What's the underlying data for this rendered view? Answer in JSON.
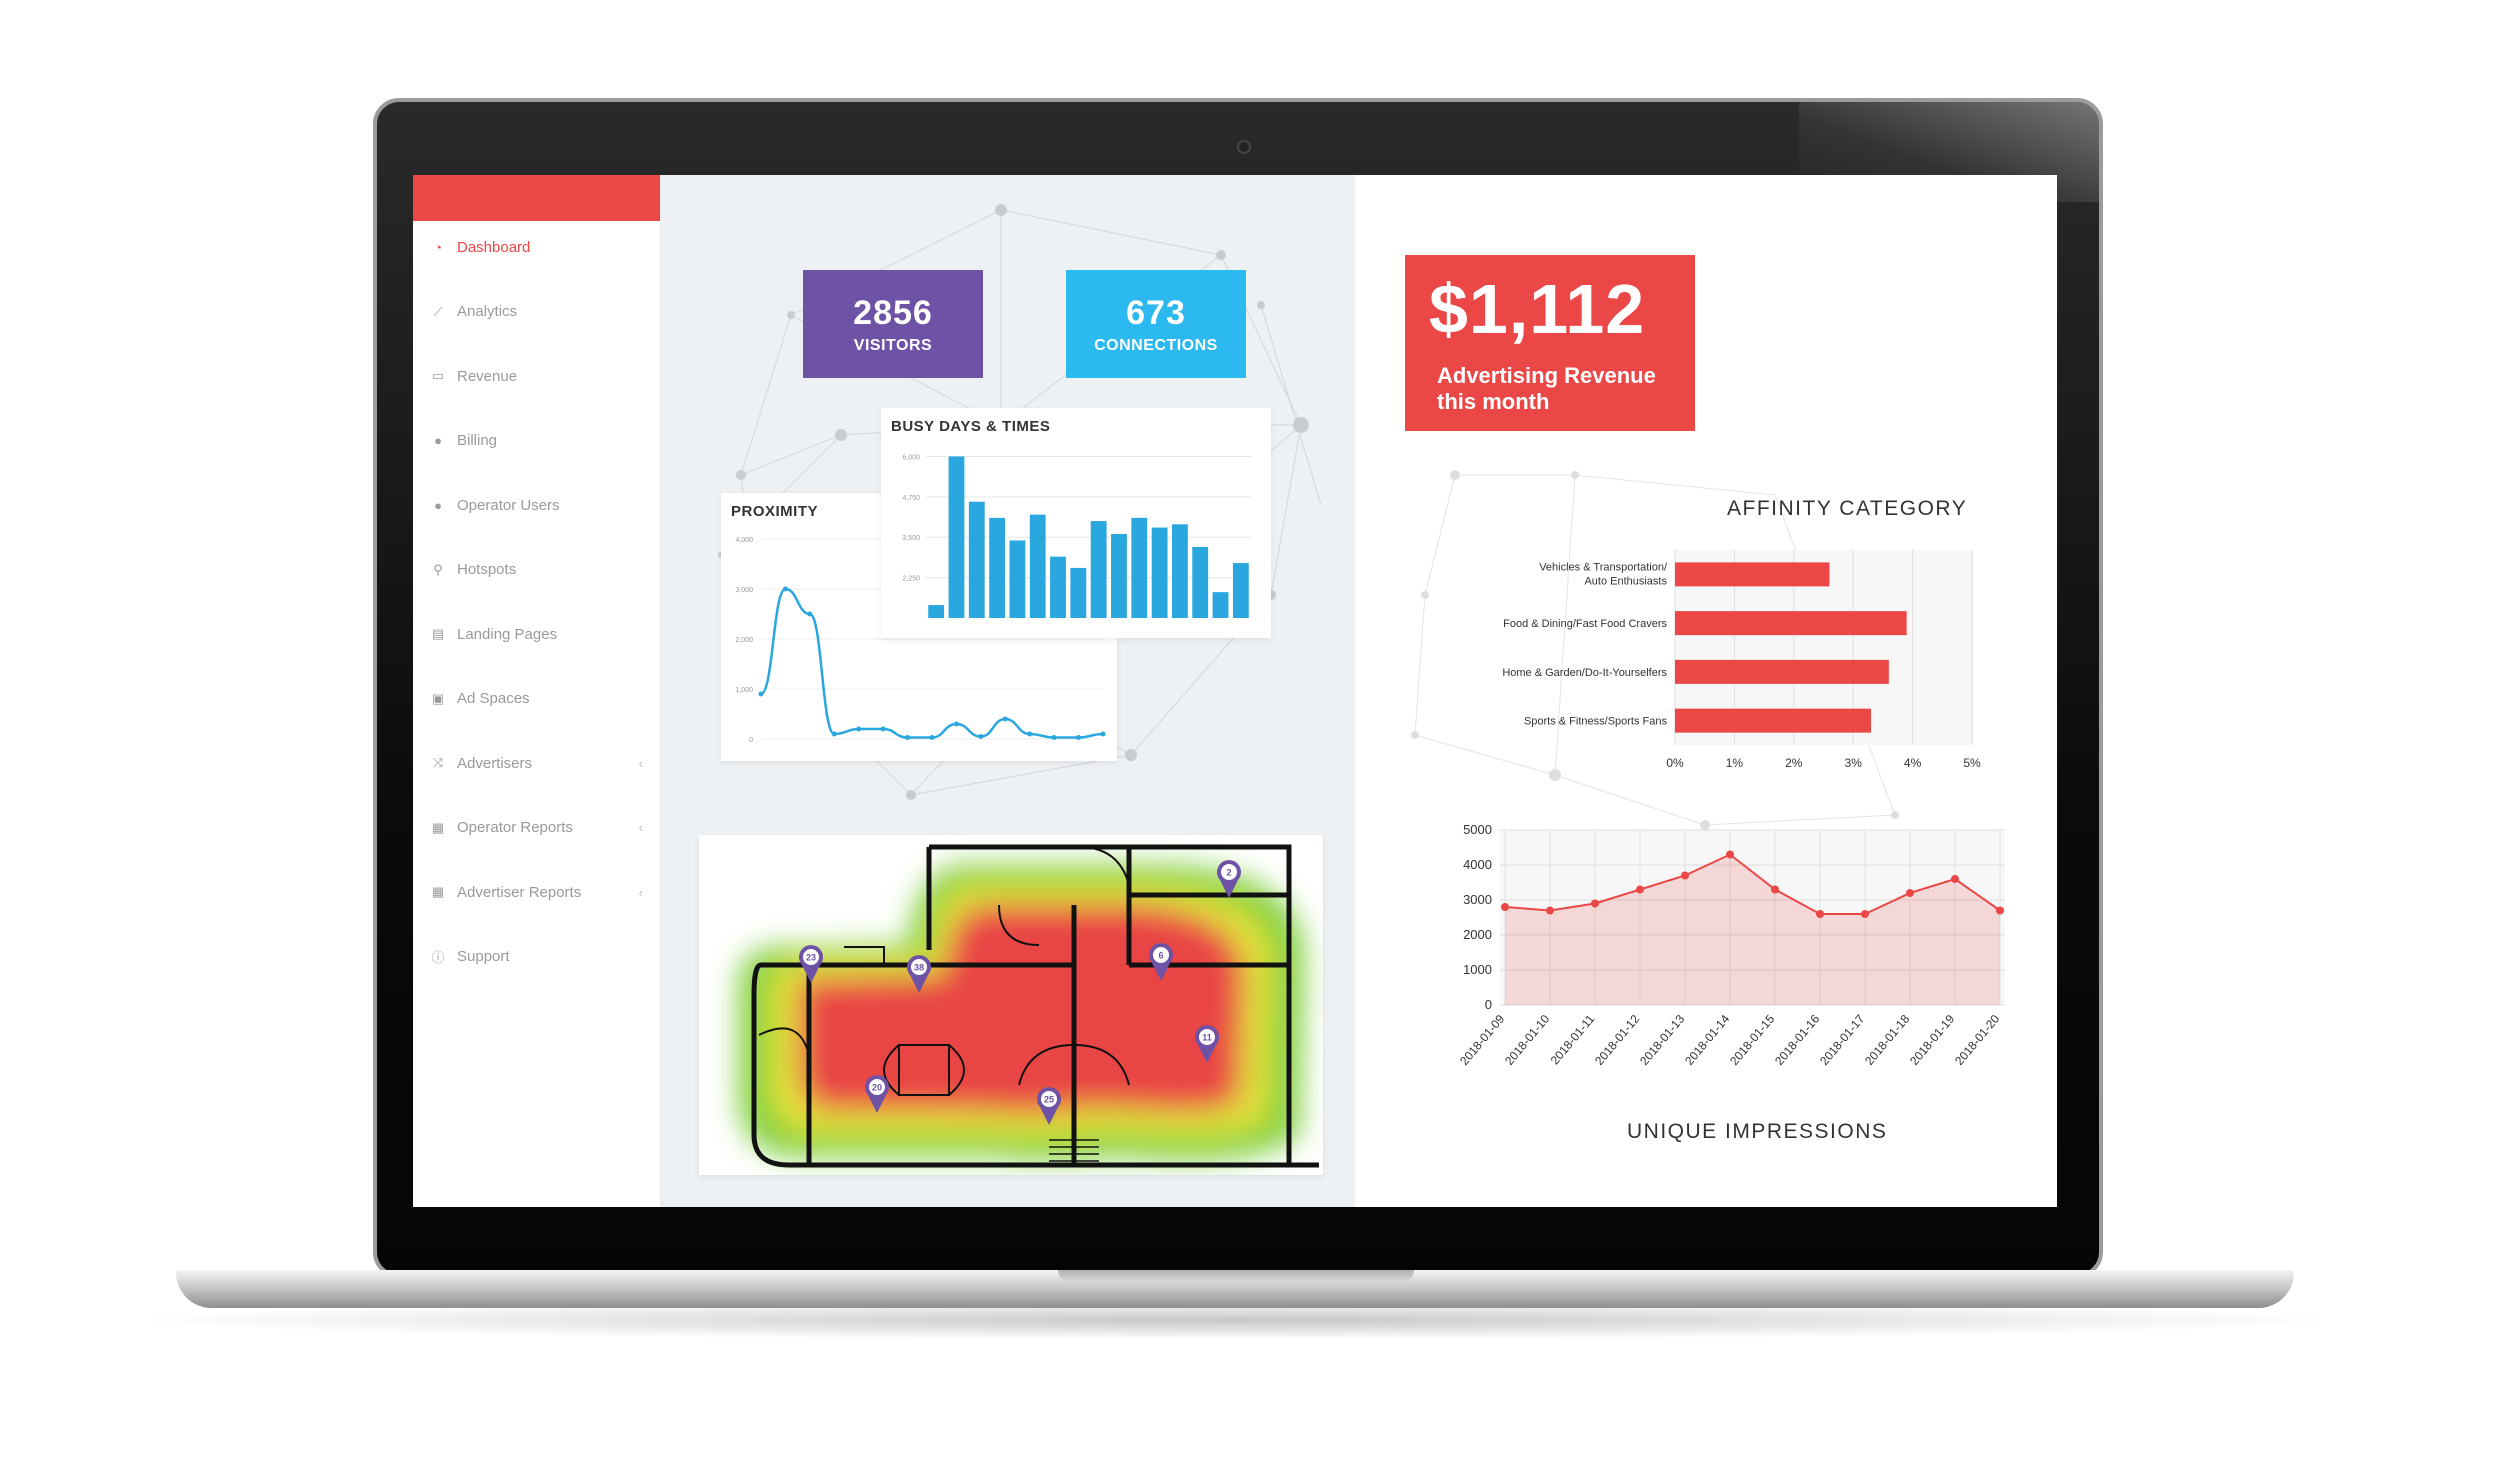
{
  "sidebar": {
    "items": [
      {
        "label": "Dashboard",
        "icon": "dashboard-icon",
        "active": true
      },
      {
        "label": "Analytics",
        "icon": "line-chart-icon"
      },
      {
        "label": "Revenue",
        "icon": "money-icon"
      },
      {
        "label": "Billing",
        "icon": "users-icon"
      },
      {
        "label": "Operator Users",
        "icon": "users-icon"
      },
      {
        "label": "Hotspots",
        "icon": "map-pin-icon"
      },
      {
        "label": "Landing Pages",
        "icon": "file-icon"
      },
      {
        "label": "Ad Spaces",
        "icon": "file-image-icon"
      },
      {
        "label": "Advertisers",
        "icon": "shuffle-icon",
        "expandable": true
      },
      {
        "label": "Operator Reports",
        "icon": "table-icon",
        "expandable": true
      },
      {
        "label": "Advertiser Reports",
        "icon": "table-icon",
        "expandable": true
      },
      {
        "label": "Support",
        "icon": "info-icon"
      }
    ]
  },
  "stats": {
    "visitors": {
      "value": "2856",
      "label": "VISITORS",
      "color": "#6d52a6"
    },
    "connections": {
      "value": "673",
      "label": "CONNECTIONS",
      "color": "#2cb9ef"
    }
  },
  "revenue": {
    "amount": "$1,112",
    "description": "Advertising Revenue this month",
    "color": "#eb4747"
  },
  "colors": {
    "accent": "#eb4747",
    "chart_blue": "#2ba7e0",
    "heat_red": "#e94444",
    "heat_yellow": "#e2e23a",
    "heat_green": "#7ccf3a",
    "pin_purple": "#6d52a6"
  },
  "heatmap": {
    "pins": [
      "23",
      "38",
      "20",
      "25",
      "6",
      "11",
      "2"
    ]
  },
  "chart_data": [
    {
      "type": "bar",
      "title": "BUSY DAYS & TIMES",
      "y_ticks": [
        "6,000",
        "4,750",
        "3,500",
        "2,250"
      ],
      "values": [
        1400,
        6000,
        4600,
        4100,
        3400,
        4200,
        2900,
        2550,
        4000,
        3600,
        4100,
        3800,
        3900,
        3200,
        1800,
        2700
      ],
      "ylim": [
        1000,
        6200
      ]
    },
    {
      "type": "line",
      "title": "PROXIMITY",
      "y_ticks": [
        "4,000",
        "3,000",
        "2,000",
        "1,000",
        "0"
      ],
      "values": [
        900,
        3000,
        2500,
        100,
        200,
        200,
        30,
        30,
        300,
        50,
        400,
        100,
        30,
        30,
        100
      ],
      "ylim": [
        0,
        4000
      ]
    },
    {
      "type": "bar",
      "orientation": "horizontal",
      "title": "AFFINITY CATEGORY",
      "categories": [
        "Vehicles & Transportation/ Auto Enthusiasts",
        "Food & Dining/Fast Food Cravers",
        "Home & Garden/Do-It-Yourselfers",
        "Sports & Fitness/Sports Fans"
      ],
      "values": [
        2.6,
        3.9,
        3.6,
        3.3
      ],
      "x_ticks": [
        "0%",
        "1%",
        "2%",
        "3%",
        "4%",
        "5%"
      ],
      "xlim": [
        0,
        5
      ]
    },
    {
      "type": "area",
      "title": "UNIQUE IMPRESSIONS",
      "x": [
        "2018-01-09",
        "2018-01-10",
        "2018-01-11",
        "2018-01-12",
        "2018-01-13",
        "2018-01-14",
        "2018-01-15",
        "2018-01-16",
        "2018-01-17",
        "2018-01-18",
        "2018-01-19",
        "2018-01-20"
      ],
      "values": [
        2800,
        2700,
        2900,
        3300,
        3700,
        4300,
        3300,
        2600,
        2600,
        3200,
        3600,
        2700
      ],
      "y_ticks": [
        "5000",
        "4000",
        "3000",
        "2000",
        "1000",
        "0"
      ],
      "ylim": [
        0,
        5000
      ]
    }
  ]
}
